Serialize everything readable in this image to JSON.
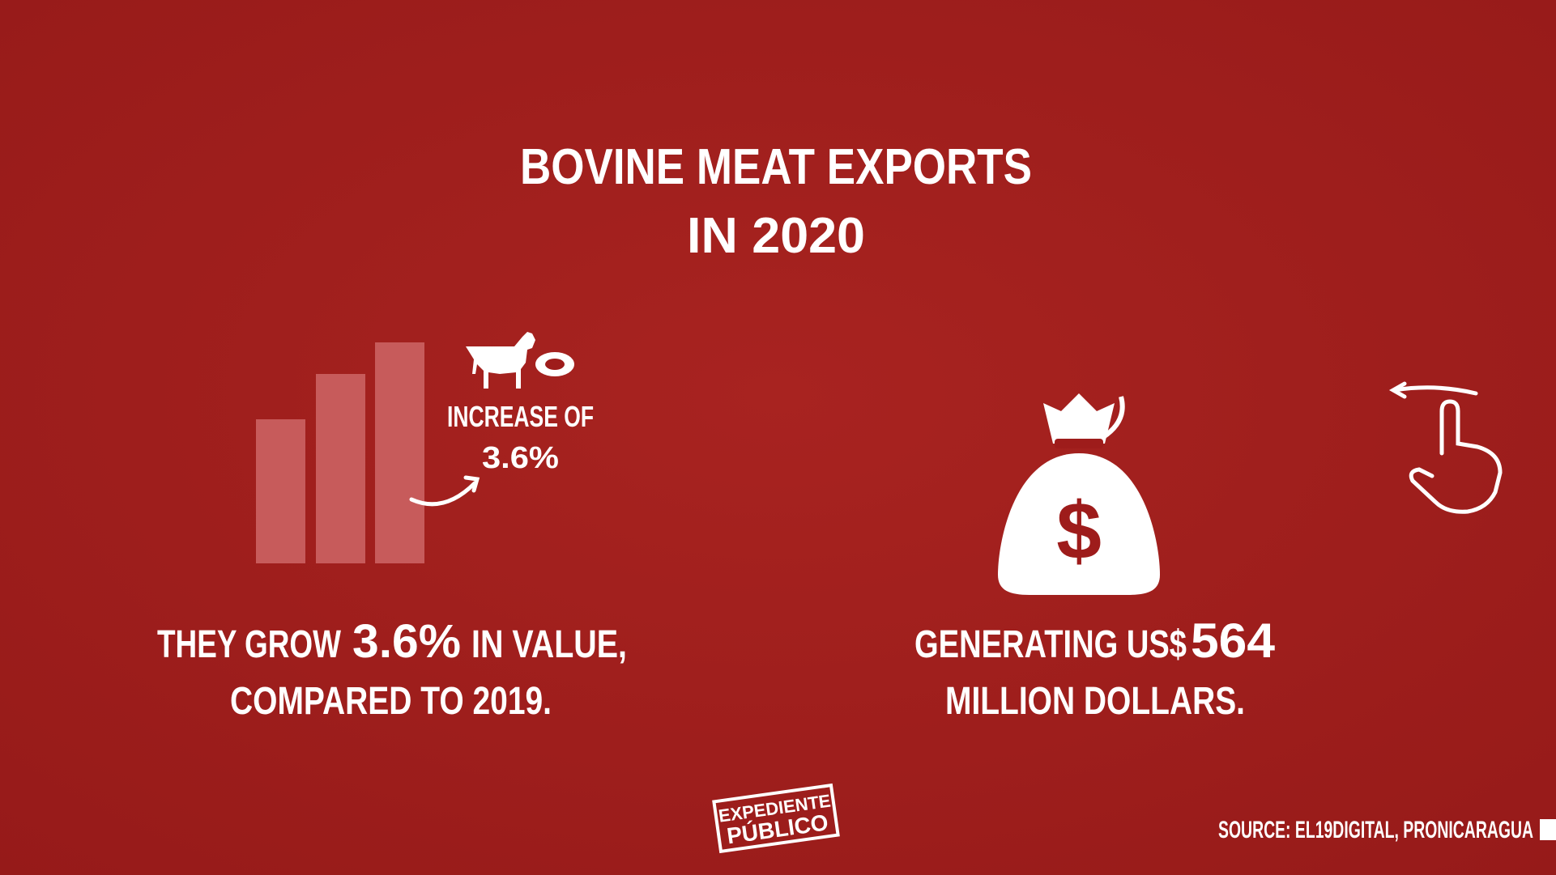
{
  "header": {
    "title_line1": "BOVINE MEAT EXPORTS",
    "title_line2": "IN 2020"
  },
  "left": {
    "badge_line1": "INCREASE OF",
    "badge_line2": "3.6%",
    "text_part1": "THEY GROW",
    "text_highlight": "3.6%",
    "text_part2": "IN VALUE,",
    "text_line2": "COMPARED TO 2019."
  },
  "right": {
    "text_part1": "GENERATING US$",
    "text_highlight": "564",
    "text_line2": "MILLION DOLLARS."
  },
  "footer": {
    "logo_line1": "EXPEDIENTE",
    "logo_line2": "PÚBLICO",
    "source": "SOURCE: EL19DIGITAL, PRONICARAGUA"
  }
}
